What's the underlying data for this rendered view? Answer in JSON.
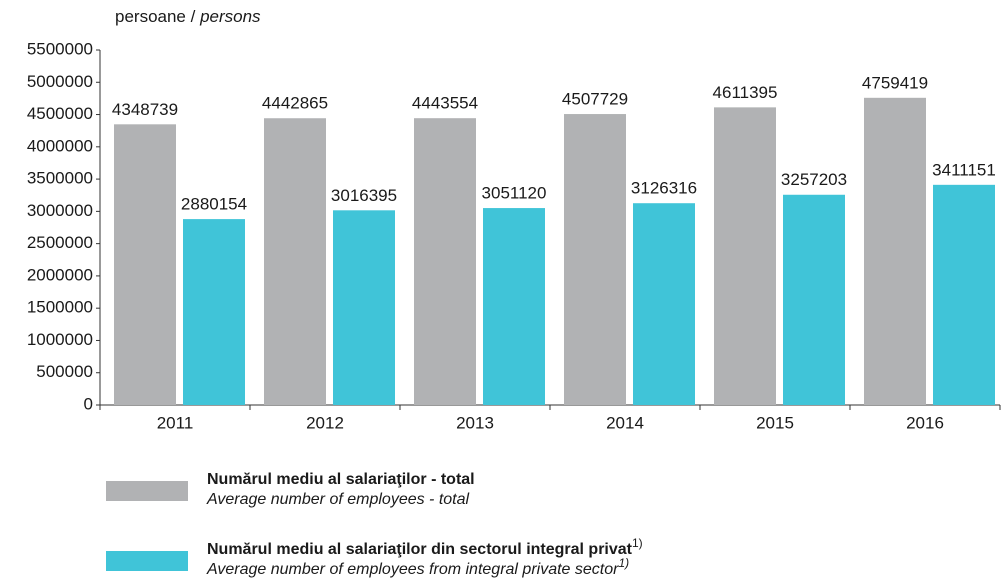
{
  "chart_data": {
    "type": "bar",
    "ylabel_parts": [
      "persoane / ",
      "persons"
    ],
    "categories": [
      "2011",
      "2012",
      "2013",
      "2014",
      "2015",
      "2016"
    ],
    "series": [
      {
        "name": "Numărul mediu al salariaţilor - total",
        "name_en": "Average number of employees - total",
        "color": "#b1b2b4",
        "values": [
          4348739,
          4442865,
          4443554,
          4507729,
          4611395,
          4759419
        ]
      },
      {
        "name": "Numărul mediu al salariaţilor din sectorul integral privat",
        "name_en": "Average number of employees from integral private sector",
        "note_marker": "1)",
        "color": "#40c4d8",
        "values": [
          2880154,
          3016395,
          3051120,
          3126316,
          3257203,
          3411151
        ]
      }
    ],
    "ylim": [
      0,
      5500000
    ],
    "yticks": [
      0,
      500000,
      1000000,
      1500000,
      2000000,
      2500000,
      3000000,
      3500000,
      4000000,
      4500000,
      5000000,
      5500000
    ],
    "grid": false
  }
}
